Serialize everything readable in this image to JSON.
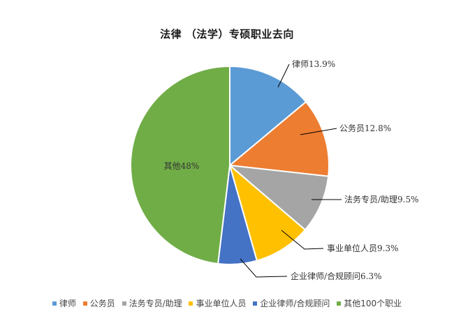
{
  "chart_data": {
    "type": "pie",
    "title": "法律 （法学）专硕职业去向",
    "categories": [
      "律师",
      "公务员",
      "法务专员/助理",
      "事业单位人员",
      "企业律师/合规顾问",
      "其他100个职业"
    ],
    "values": [
      13.9,
      12.8,
      9.5,
      9.3,
      6.3,
      48.0
    ],
    "unit": "%",
    "colors": [
      "#5b9bd5",
      "#ed7d31",
      "#a5a5a5",
      "#ffc000",
      "#4472c4",
      "#70ad47"
    ],
    "data_labels": [
      "律师13.9%",
      "公务员12.8%",
      "法务专员/助理9.5%",
      "事业单位人员9.3%",
      "企业律师/合规顾问6.3%",
      "其他48%"
    ],
    "legend_position": "bottom",
    "start_angle_deg": 0,
    "direction": "clockwise"
  },
  "legend": [
    {
      "label": "律师",
      "color": "#5b9bd5"
    },
    {
      "label": "公务员",
      "color": "#ed7d31"
    },
    {
      "label": "法务专员/助理",
      "color": "#a5a5a5"
    },
    {
      "label": "事业单位人员",
      "color": "#ffc000"
    },
    {
      "label": "企业律师/合规顾问",
      "color": "#4472c4"
    },
    {
      "label": "其他100个职业",
      "color": "#70ad47"
    }
  ]
}
